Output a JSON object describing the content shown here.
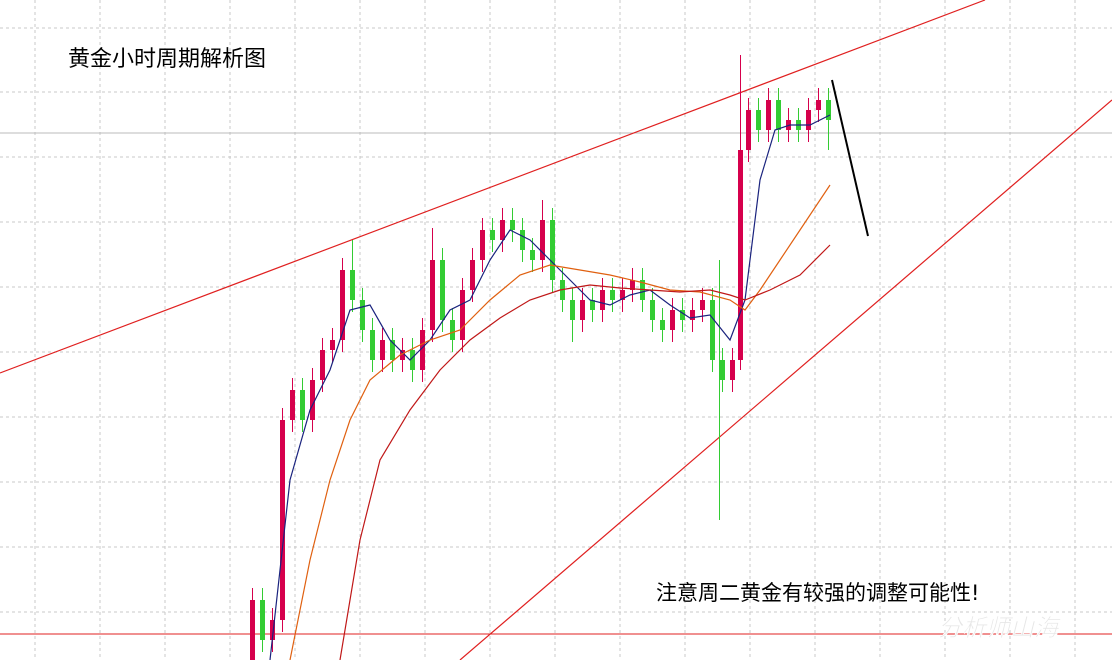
{
  "title": "黄金小时周期解析图",
  "annotation": "注意周二黄金有较强的调整可能性!",
  "watermark": "分析师山海"
}
